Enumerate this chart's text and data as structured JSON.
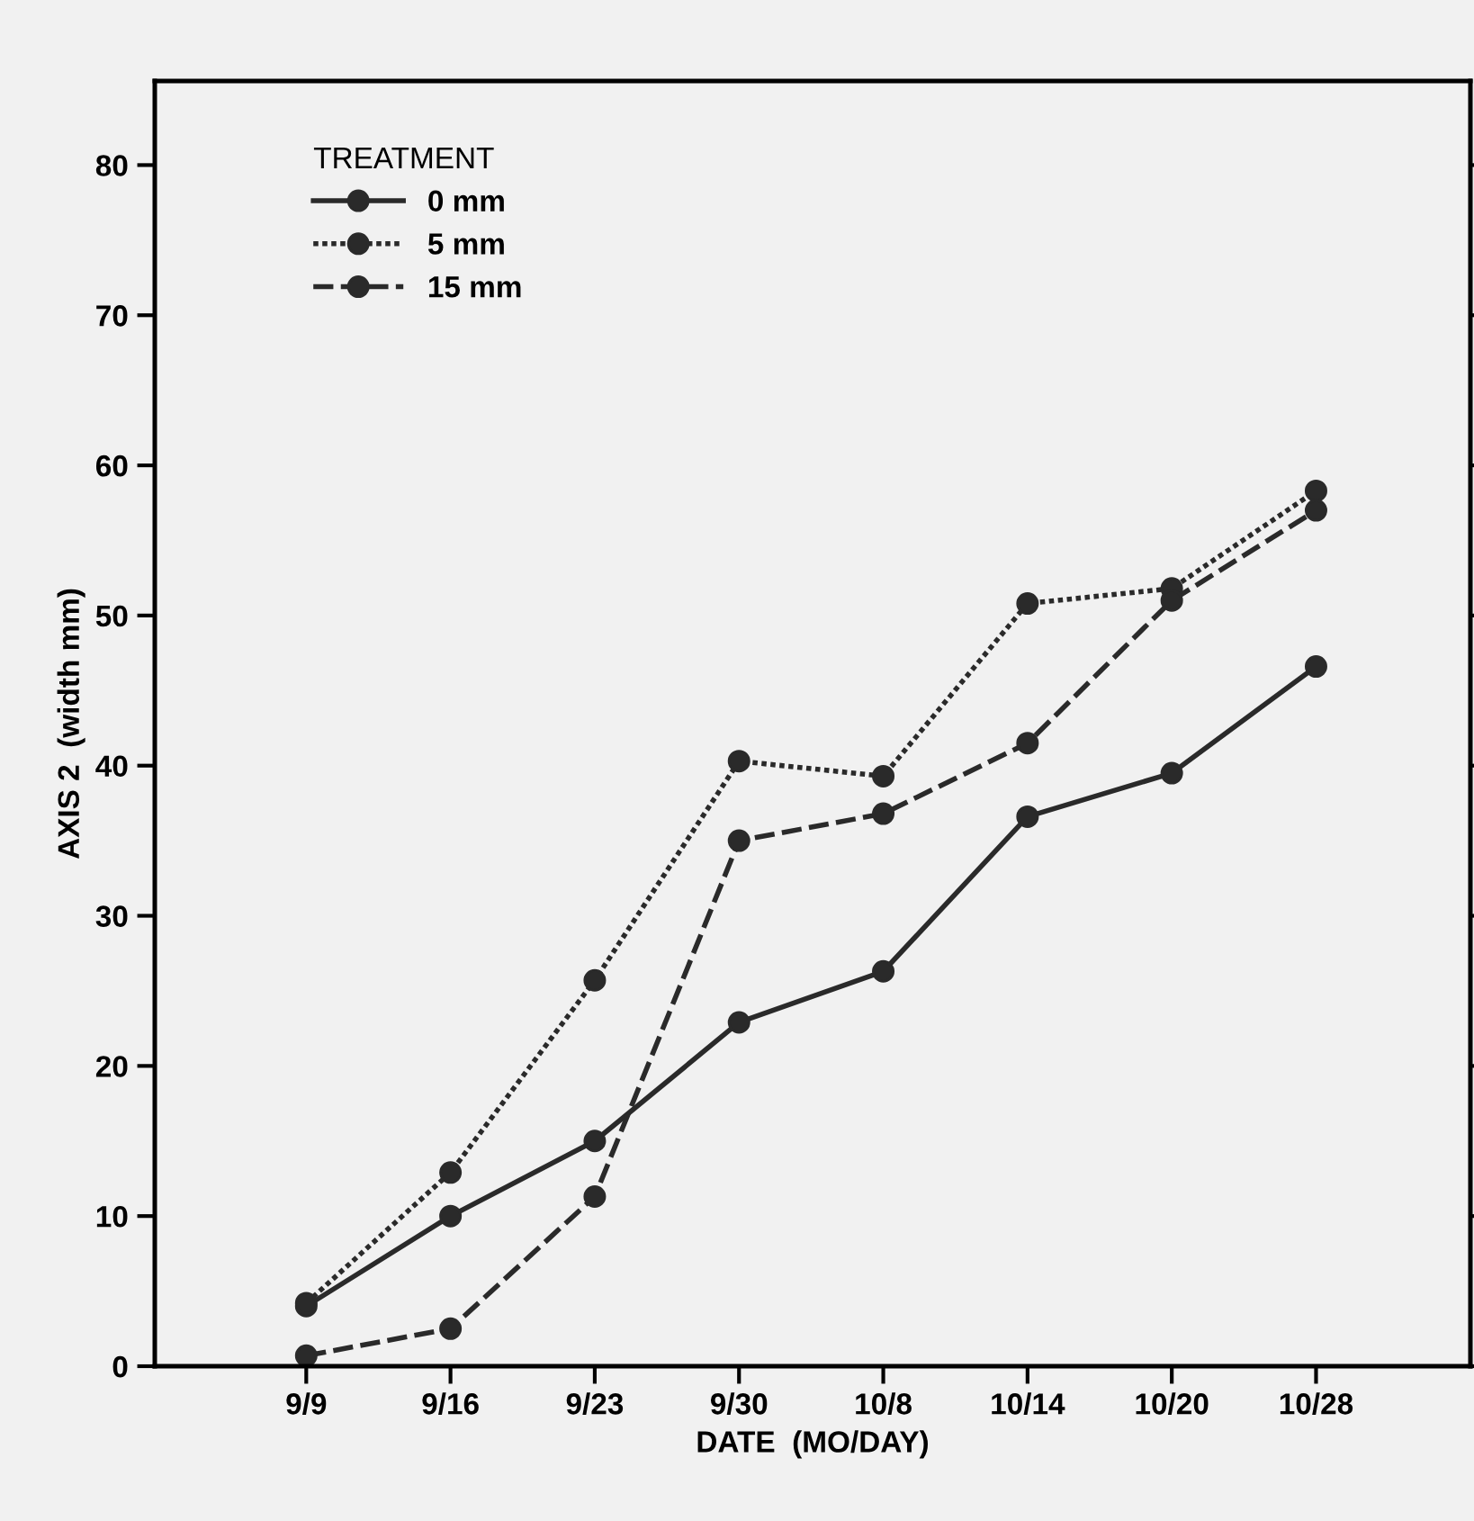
{
  "chart_data": {
    "type": "line",
    "xlabel": "DATE  (MO/DAY)",
    "ylabel": "AXIS 2  (width mm)",
    "legend_title": "TREATMENT",
    "legend": "top left",
    "marker": "circle",
    "grid": false,
    "categories": [
      "9/9",
      "9/16",
      "9/23",
      "9/30",
      "10/8",
      "10/14",
      "10/20",
      "10/28"
    ],
    "ylim": [
      0,
      85.6
    ],
    "yticks": [
      0,
      10,
      20,
      30,
      40,
      50,
      60,
      70,
      80
    ],
    "series": [
      {
        "name": "0 mm",
        "color": "#2a2a2a",
        "line_style": "solid",
        "values": [
          4,
          10,
          15,
          22.9,
          26.3,
          36.6,
          39.5,
          46.6
        ]
      },
      {
        "name": "5 mm",
        "color": "#2a2a2a",
        "line_style": "dotted",
        "values": [
          4.2,
          12.9,
          25.7,
          40.3,
          39.3,
          50.8,
          51.8,
          58.3
        ]
      },
      {
        "name": "15 mm",
        "color": "#2a2a2a",
        "line_style": "dashed",
        "values": [
          0.7,
          2.5,
          11.3,
          35,
          36.8,
          41.5,
          51,
          57
        ]
      }
    ]
  }
}
